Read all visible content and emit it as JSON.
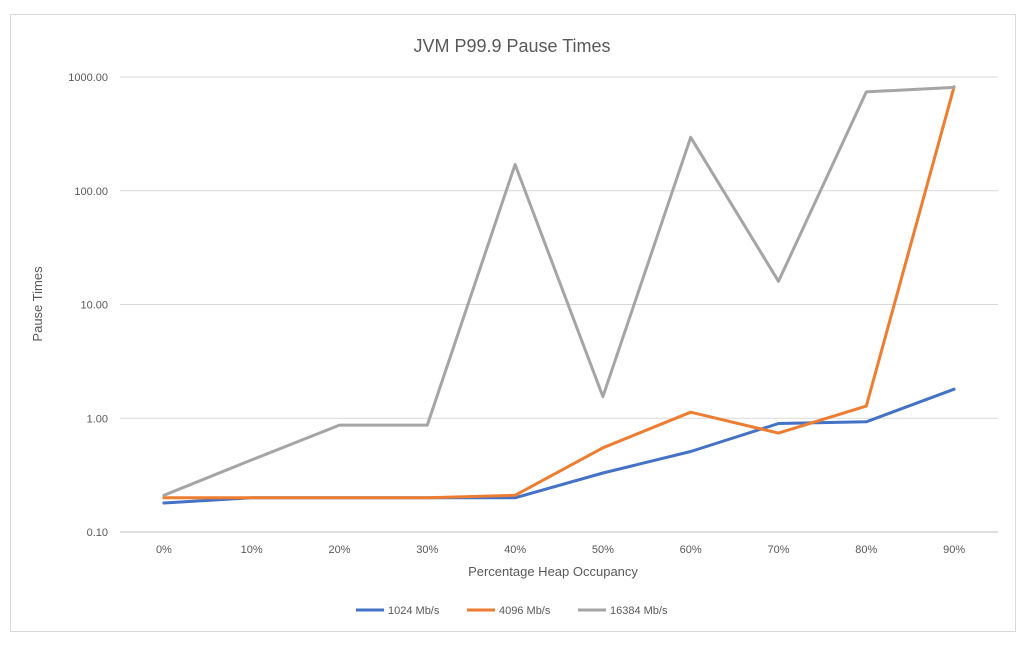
{
  "chart_data": {
    "type": "line",
    "title": "JVM P99.9 Pause Times",
    "xlabel": "Percentage Heap Occupancy",
    "ylabel": "Pause Times",
    "yscale": "log",
    "ylim": [
      0.1,
      1000
    ],
    "yticks": [
      0.1,
      1,
      10,
      100,
      1000
    ],
    "ytick_labels": [
      "0.10",
      "1.00",
      "10.00",
      "100.00",
      "1000.00"
    ],
    "categories": [
      "0%",
      "10%",
      "20%",
      "30%",
      "40%",
      "50%",
      "60%",
      "70%",
      "80%",
      "90%"
    ],
    "grid": true,
    "legend_position": "bottom",
    "series": [
      {
        "name": "1024 Mb/s",
        "color": "#4472c4",
        "values": [
          0.18,
          0.2,
          0.2,
          0.2,
          0.2,
          0.33,
          0.51,
          0.9,
          0.93,
          1.8
        ]
      },
      {
        "name": "4096 Mb/s",
        "color": "#ed7d31",
        "values": [
          0.2,
          0.2,
          0.2,
          0.2,
          0.21,
          0.55,
          1.13,
          0.74,
          1.28,
          820
        ]
      },
      {
        "name": "16384 Mb/s",
        "color": "#a5a5a5",
        "values": [
          0.21,
          0.43,
          0.87,
          0.87,
          170,
          1.55,
          295,
          16,
          740,
          810
        ]
      }
    ]
  }
}
